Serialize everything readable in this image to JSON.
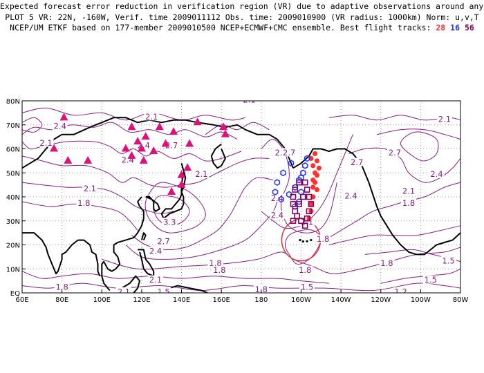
{
  "title": {
    "line1": "Expected forecast error reduction in verification region (VR) due to adaptive observations around any grid point.",
    "line2": "PLOT 5 VR: 22N, -160W, Verif. time 2009011112 Obs. time: 2009010900 (VR radius: 1000km) Norm: u,v,T",
    "line3_prefix": "NCEP/UM ETKF based on 177-member 2009010500 NCEP+ECMWF+CMC ensemble. Best flight tracks:",
    "track_red": "28",
    "track_blue": "16",
    "track_purple": "56"
  },
  "axes": {
    "y_ticks": [
      "80N",
      "70N",
      "60N",
      "50N",
      "40N",
      "30N",
      "20N",
      "10N",
      "EQ"
    ],
    "x_ticks": [
      "60E",
      "80E",
      "100E",
      "120E",
      "140E",
      "160E",
      "180",
      "160W",
      "140W",
      "120W",
      "100W",
      "80W"
    ]
  },
  "colors": {
    "contour": "#8a1a8a",
    "triangle": "#e0107a",
    "track_red": "#ff3030",
    "track_blue": "#2233ff",
    "track_purple": "#800060",
    "verification_circle": "#e83030"
  },
  "contour_labels": [
    {
      "text": "2.1",
      "lon": 125,
      "lat": 73
    },
    {
      "text": "2.1",
      "lon": 174,
      "lat": 80
    },
    {
      "text": "2.4",
      "lon": 79,
      "lat": 69
    },
    {
      "text": "2.1",
      "lon": 72,
      "lat": 62
    },
    {
      "text": "2.4",
      "lon": 121,
      "lat": 61
    },
    {
      "text": "2.7",
      "lon": 135,
      "lat": 61
    },
    {
      "text": "2.4",
      "lon": 113,
      "lat": 55
    },
    {
      "text": "2.1",
      "lon": 150,
      "lat": 49
    },
    {
      "text": "2.1",
      "lon": 94,
      "lat": 43
    },
    {
      "text": "1.8",
      "lon": 91,
      "lat": 37
    },
    {
      "text": "3.3",
      "lon": 134,
      "lat": 29
    },
    {
      "text": "2.7",
      "lon": 131,
      "lat": 21
    },
    {
      "text": "2.4",
      "lon": 127,
      "lat": 17
    },
    {
      "text": "1.8",
      "lon": 157,
      "lat": 12
    },
    {
      "text": "1.8",
      "lon": 159,
      "lat": 9
    },
    {
      "text": "2.1",
      "lon": 127,
      "lat": 5
    },
    {
      "text": "1.8",
      "lon": 80,
      "lat": 2
    },
    {
      "text": "2.1",
      "lon": 111,
      "lat": 0
    },
    {
      "text": "1.5",
      "lon": 131,
      "lat": 0
    },
    {
      "text": "1.8",
      "lon": 180,
      "lat": 1
    },
    {
      "text": "2.4",
      "lon": 190,
      "lat": 58
    },
    {
      "text": "2.7",
      "lon": 194,
      "lat": 58
    },
    {
      "text": "2.7",
      "lon": 228,
      "lat": 54
    },
    {
      "text": "2.7",
      "lon": 247,
      "lat": 58
    },
    {
      "text": "2.4",
      "lon": 268,
      "lat": 49
    },
    {
      "text": "2.1",
      "lon": 272,
      "lat": 72
    },
    {
      "text": "2.4",
      "lon": 188,
      "lat": 39
    },
    {
      "text": "2.4",
      "lon": 188,
      "lat": 32
    },
    {
      "text": "2.1",
      "lon": 203,
      "lat": 29
    },
    {
      "text": "1.8",
      "lon": 211,
      "lat": 22
    },
    {
      "text": "2.4",
      "lon": 225,
      "lat": 40
    },
    {
      "text": "2.1",
      "lon": 254,
      "lat": 42
    },
    {
      "text": "1.8",
      "lon": 254,
      "lat": 37
    },
    {
      "text": "1.8",
      "lon": 202,
      "lat": 9
    },
    {
      "text": "1.5",
      "lon": 203,
      "lat": 2
    },
    {
      "text": "1.8",
      "lon": 243,
      "lat": 12
    },
    {
      "text": "1.5",
      "lon": 265,
      "lat": 5
    },
    {
      "text": "1.2",
      "lon": 250,
      "lat": 0
    },
    {
      "text": "1.5",
      "lon": 274,
      "lat": 13
    }
  ],
  "observation_sites": [
    [
      81,
      73
    ],
    [
      115,
      69
    ],
    [
      122,
      65
    ],
    [
      129,
      69
    ],
    [
      148,
      71
    ],
    [
      161,
      69
    ],
    [
      162,
      66
    ],
    [
      136,
      67
    ],
    [
      76,
      60
    ],
    [
      83,
      55
    ],
    [
      93,
      55
    ],
    [
      112,
      60
    ],
    [
      120,
      60
    ],
    [
      126,
      59
    ],
    [
      132,
      62
    ],
    [
      144,
      62
    ],
    [
      118,
      63
    ],
    [
      115,
      57
    ],
    [
      121,
      55
    ],
    [
      143,
      52
    ],
    [
      140,
      49
    ],
    [
      135,
      42
    ],
    [
      140,
      45
    ]
  ],
  "flight_tracks": {
    "red": [
      [
        207,
        58
      ],
      [
        208,
        55
      ],
      [
        209,
        52
      ],
      [
        208,
        49
      ],
      [
        207,
        46
      ],
      [
        208,
        43
      ],
      [
        206,
        40
      ],
      [
        205,
        37
      ],
      [
        205,
        34
      ],
      [
        204,
        31
      ],
      [
        205,
        56
      ],
      [
        206,
        53
      ],
      [
        207,
        50
      ],
      [
        206,
        47
      ],
      [
        206,
        44
      ]
    ],
    "blue": [
      [
        195,
        54
      ],
      [
        191,
        50
      ],
      [
        188,
        46
      ],
      [
        187,
        42
      ],
      [
        190,
        39
      ],
      [
        194,
        41
      ],
      [
        197,
        44
      ],
      [
        199,
        47
      ],
      [
        201,
        50
      ],
      [
        202,
        53
      ],
      [
        203,
        56
      ],
      [
        200,
        48
      ],
      [
        197,
        36
      ],
      [
        199,
        38
      ],
      [
        200,
        42
      ]
    ],
    "purple": [
      [
        203,
        31
      ],
      [
        204,
        34
      ],
      [
        205,
        37
      ],
      [
        204,
        40
      ],
      [
        203,
        43
      ],
      [
        202,
        46
      ],
      [
        199,
        46
      ],
      [
        197,
        43
      ],
      [
        196,
        40
      ],
      [
        196,
        37
      ],
      [
        197,
        34
      ],
      [
        198,
        32
      ],
      [
        200,
        30
      ],
      [
        202,
        28
      ],
      [
        196,
        30
      ],
      [
        199,
        37
      ],
      [
        201,
        40
      ]
    ]
  },
  "verification_region": {
    "lon": 200,
    "lat": 22,
    "radius_km": 1000
  }
}
